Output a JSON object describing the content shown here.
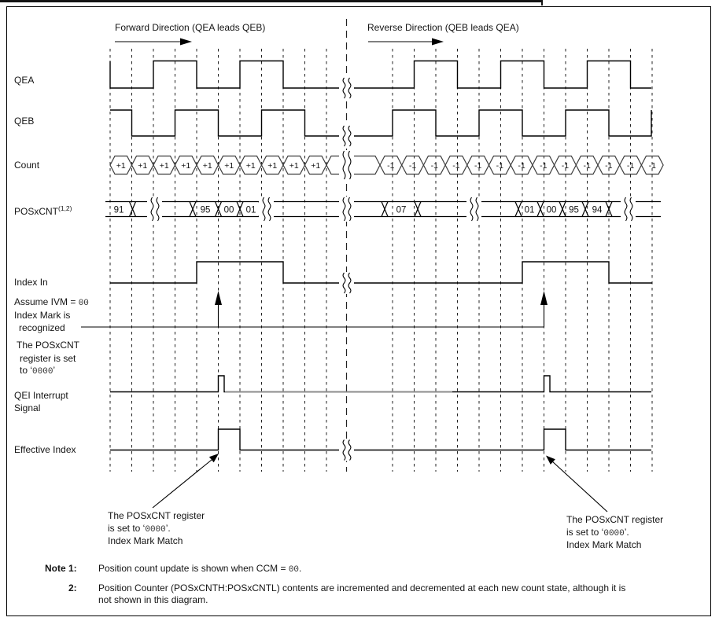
{
  "header": {
    "forward_label": "Forward Direction (QEA leads QEB)",
    "reverse_label": "Reverse Direction (QEB leads QEA)"
  },
  "signals": {
    "qea": "QEA",
    "qeb": "QEB",
    "count": "Count",
    "poscnt": "POSxCNT",
    "poscnt_sup": "(1,2)",
    "index_in": "Index In",
    "qei_line1": "QEI Interrupt",
    "qei_line2": "Signal",
    "effective_index": "Effective Index"
  },
  "count_values": {
    "forward": [
      "+1",
      "+1",
      "+1",
      "+1",
      "+1",
      "+1",
      "+1",
      "+1",
      "+1",
      "+1"
    ],
    "reverse": [
      "-1",
      "-1",
      "-1",
      "-1",
      "-1",
      "-1",
      "-1",
      "-1",
      "-1",
      "-1",
      "-1",
      "-1",
      "-1"
    ]
  },
  "poscnt_values": {
    "left": [
      "91",
      "95",
      "00",
      "01"
    ],
    "right": [
      "07",
      "01",
      "00",
      "95",
      "94"
    ]
  },
  "annotations": {
    "assume": {
      "pre": "Assume IVM = ",
      "val": "00"
    },
    "index_mark_1": "Index Mark is",
    "index_mark_2": "recognized",
    "set_1": "The POSxCNT",
    "set_2": "register is set",
    "set_3": {
      "pre": "to ‘",
      "val": "0000",
      "post": "’"
    },
    "match_1": "The POSxCNT register",
    "match_2": {
      "pre": "is set to ‘",
      "val": "0000",
      "post": "’."
    },
    "match_3": "Index Mark Match"
  },
  "notes": {
    "note_label": "Note",
    "n1_num": "1:",
    "n1": {
      "pre": "Position count update is shown when CCM = ",
      "val": "00",
      "post": "."
    },
    "n2_num": "2:",
    "n2_line1": "Position Counter (POSxCNTH:POSxCNTL) contents are incremented and decremented at each new count state, although it is",
    "n2_line2": "not shown in this diagram."
  }
}
